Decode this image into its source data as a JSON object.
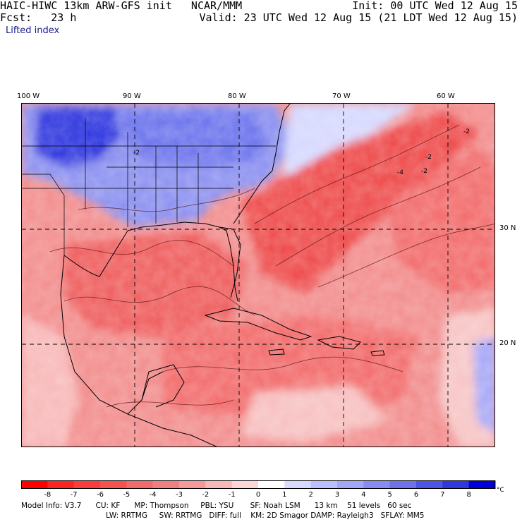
{
  "header": {
    "model": "HAIC-HIWC 13km ARW-GFS init   NCAR/MMM",
    "forecast": "Fcst:   23 h",
    "init": "Init: 00 UTC Wed 12 Aug 15",
    "valid": "Valid: 23 UTC Wed 12 Aug 15 (21 LDT Wed 12 Aug 15)",
    "field": "Lifted index"
  },
  "map": {
    "lon_labels": [
      "100 W",
      "90 W",
      "80 W",
      "70 W",
      "60 W"
    ],
    "lat_labels": [
      "30 N",
      "20 N"
    ],
    "contour_labels": [
      "-2",
      "-2",
      "-2",
      "-4",
      "-2"
    ]
  },
  "colorbar": {
    "ticks": [
      "-8",
      "-7",
      "-6",
      "-5",
      "-4",
      "-3",
      "-2",
      "-1",
      "0",
      "1",
      "2",
      "3",
      "4",
      "5",
      "6",
      "7",
      "8"
    ],
    "unit": "°C",
    "colors": [
      "#ff0000",
      "#ff2222",
      "#fa3c3c",
      "#f55252",
      "#f26a6a",
      "#f08080",
      "#f49a9a",
      "#f8b8b8",
      "#fcd6d6",
      "#ffffff",
      "#d8daff",
      "#bcbfff",
      "#a2a6f8",
      "#878cf2",
      "#6b72ec",
      "#4e55e6",
      "#2f37de",
      "#0000dc"
    ]
  },
  "model_info": {
    "line1": "Model Info: V3.7      CU: KF      MP: Thompson     PBL: YSU       SF: Noah LSM      13 km    51 levels   60 sec",
    "line2": "LW: RRTMG     SW: RRTMG   DIFF: full    KM: 2D Smagor DAMP: Rayleigh3   SFLAY: MM5"
  }
}
